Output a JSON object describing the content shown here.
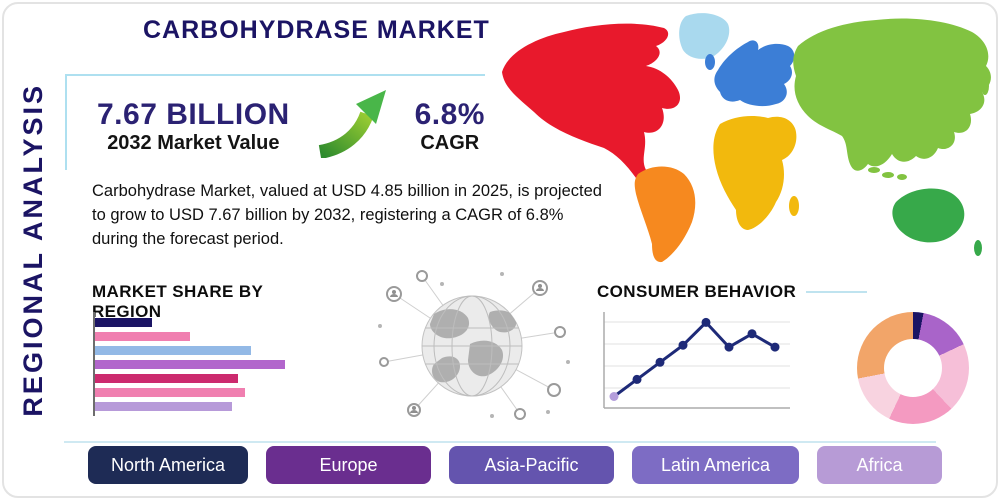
{
  "header": {
    "title": "CARBOHYDRASE MARKET",
    "side_label": "REGIONAL ANALYSIS"
  },
  "stats": {
    "market_value": "7.67 BILLION",
    "market_value_label": "2032 Market Value",
    "cagr_value": "6.8%",
    "cagr_label": "CAGR",
    "growth_arrow_icon": "growth-arrow-up-right",
    "description": "Carbohydrase Market, valued at USD 4.85 billion in 2025, is projected to grow to USD 7.67 billion by 2032, registering a CAGR of 6.8% during the forecast period."
  },
  "regions_buttons": [
    {
      "label": "North America",
      "color": "#1e2b55"
    },
    {
      "label": "Europe",
      "color": "#6a2e8f"
    },
    {
      "label": "Asia-Pacific",
      "color": "#6454ae"
    },
    {
      "label": "Latin America",
      "color": "#7d6cc4"
    },
    {
      "label": "Africa",
      "color": "#b79bd6"
    }
  ],
  "map": {
    "name": "world-map",
    "regions": [
      {
        "name": "north-america",
        "color": "#e8192c"
      },
      {
        "name": "greenland",
        "color": "#a9d9ee"
      },
      {
        "name": "south-america",
        "color": "#f6891f"
      },
      {
        "name": "europe",
        "color": "#3c7ed6"
      },
      {
        "name": "africa",
        "color": "#f2b90d"
      },
      {
        "name": "asia",
        "color": "#82c341"
      },
      {
        "name": "australia",
        "color": "#37a94a"
      }
    ]
  },
  "chart_data": [
    {
      "type": "bar",
      "title": "MARKET SHARE BY REGION",
      "orientation": "horizontal",
      "values": [
        29,
        48,
        79,
        96,
        72,
        76,
        69
      ],
      "colors": [
        "#1b1464",
        "#f07fb0",
        "#93b9e6",
        "#b266cc",
        "#cc2a6e",
        "#f07fb0",
        "#b79ad9"
      ],
      "xlim": [
        0,
        100
      ],
      "grid": false
    },
    {
      "type": "line",
      "title": "CONSUMER BEHAVIOR",
      "x": [
        1,
        2,
        3,
        4,
        5,
        6,
        7,
        8
      ],
      "values": [
        10,
        28,
        46,
        64,
        88,
        62,
        76,
        62
      ],
      "ylim": [
        0,
        100
      ],
      "color": "#1e2a78",
      "first_point_color": "#b39ddb",
      "grid": true
    },
    {
      "type": "pie",
      "title": "regional-share-donut",
      "slices": [
        {
          "label": "slice-navy",
          "value": 3,
          "color": "#1b1464"
        },
        {
          "label": "slice-violet",
          "value": 15,
          "color": "#a964c9"
        },
        {
          "label": "slice-pale-pink",
          "value": 20,
          "color": "#f6bfd8"
        },
        {
          "label": "slice-pink",
          "value": 19,
          "color": "#f49ac1"
        },
        {
          "label": "slice-light-pink",
          "value": 15,
          "color": "#f8d3e0"
        },
        {
          "label": "slice-peach",
          "value": 28,
          "color": "#f2a569"
        }
      ]
    }
  ]
}
